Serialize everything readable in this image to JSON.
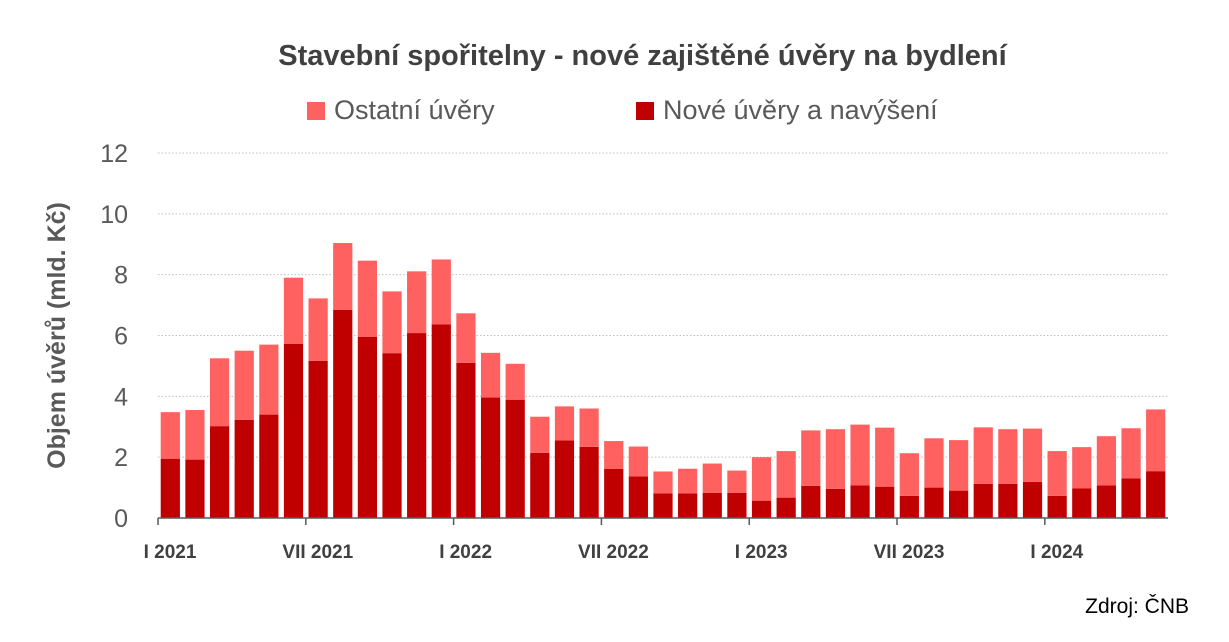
{
  "chart_data": {
    "type": "bar",
    "stacked": true,
    "title": "Stavební spořitelny - nové zajištěné úvěry na bydlení",
    "ylabel": "Objem úvěrů (mld. Kč)",
    "ylim": [
      0,
      12
    ],
    "yticks": [
      0,
      2,
      4,
      6,
      8,
      10,
      12
    ],
    "grid": true,
    "legend_position": "top",
    "x_tick_labels": [
      {
        "index": 0,
        "label": "I 2021"
      },
      {
        "index": 6,
        "label": "VII 2021"
      },
      {
        "index": 12,
        "label": "I 2022"
      },
      {
        "index": 18,
        "label": "VII 2022"
      },
      {
        "index": 24,
        "label": "I 2023"
      },
      {
        "index": 30,
        "label": "VII 2023"
      },
      {
        "index": 36,
        "label": "I 2024"
      }
    ],
    "series": [
      {
        "name": "Nové úvěry a navýšení",
        "color": "#c00000",
        "values": [
          1.95,
          1.92,
          3.02,
          3.23,
          3.4,
          5.73,
          5.17,
          6.84,
          5.96,
          5.42,
          6.08,
          6.37,
          5.1,
          3.96,
          3.89,
          2.14,
          2.55,
          2.34,
          1.62,
          1.37,
          0.81,
          0.81,
          0.83,
          0.83,
          0.57,
          0.67,
          1.06,
          0.96,
          1.07,
          1.03,
          0.73,
          1.0,
          0.9,
          1.12,
          1.12,
          1.19,
          0.73,
          0.97,
          1.07,
          1.3,
          1.54
        ]
      },
      {
        "name": "Ostatní úvěry",
        "color": "#ff6161",
        "values": [
          1.53,
          1.63,
          2.23,
          2.27,
          2.3,
          2.17,
          2.05,
          2.2,
          2.5,
          2.03,
          2.03,
          2.13,
          1.63,
          1.47,
          1.18,
          1.19,
          1.12,
          1.26,
          0.91,
          0.98,
          0.72,
          0.81,
          0.96,
          0.73,
          1.43,
          1.53,
          1.82,
          1.96,
          2.0,
          1.94,
          1.4,
          1.62,
          1.66,
          1.86,
          1.8,
          1.75,
          1.47,
          1.36,
          1.62,
          1.65,
          2.03
        ]
      }
    ]
  },
  "legend": [
    {
      "label": "Ostatní úvěry",
      "color": "#ff6161"
    },
    {
      "label": "Nové úvěry a navýšení",
      "color": "#c00000"
    }
  ],
  "source": "Zdroj: ČNB"
}
